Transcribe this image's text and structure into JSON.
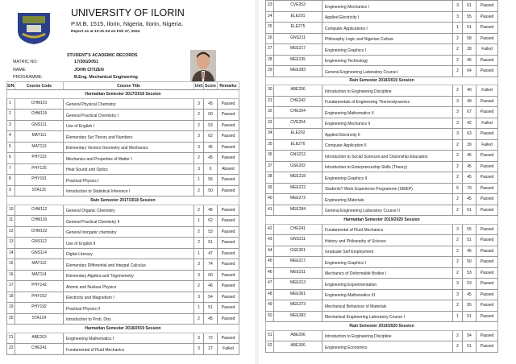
{
  "header": {
    "university": "UNIVERSITY OF ILORIN",
    "address": "P.M.B. 1515, Ilorin, Nigeria, Ilorin, Nigeria.",
    "report_time": "Report as at 10:31:34 on Feb 27, 2024",
    "records_title": "STUDENT'S ACADEMIC RECORDS"
  },
  "student": {
    "matric_label": "MATRIC NO:",
    "matric": "17/30GD051",
    "name_label": "NAME:",
    "name": "JOHN CITIZEN",
    "programme_label": "PROGRAMME:",
    "programme": "B.Eng. Mechanical Engineering"
  },
  "columns": {
    "sn": "S/N",
    "code": "Course Code",
    "title": "Course Title",
    "unit": "Unit",
    "score": "Score",
    "remarks": "Remarks"
  },
  "page1": [
    {
      "section": "Harmattan Semester 2017/2018 Session"
    },
    [
      "1",
      "CHM101",
      "General Physical Chemistry",
      "3",
      "45",
      "Passed"
    ],
    [
      "2",
      "CHM115",
      "General Practical Chemistry I",
      "2",
      "60",
      "Passed"
    ],
    [
      "3",
      "GNS111",
      "Use of English I",
      "2",
      "53",
      "Passed"
    ],
    [
      "4",
      "MAT111",
      "Elementary Set Theory and Numbers",
      "3",
      "62",
      "Passed"
    ],
    [
      "5",
      "MAT113",
      "Elementary Vectors Geometry and Mechanics",
      "3",
      "45",
      "Passed"
    ],
    [
      "6",
      "PHY115",
      "Mechanics and Properties of Matter I",
      "2",
      "45",
      "Passed"
    ],
    [
      "7",
      "PHY125",
      "Heat Sound and Optics",
      "3",
      "0",
      "Absent"
    ],
    [
      "8",
      "PHY191",
      "Practical Physics I",
      "1",
      "56",
      "Passed"
    ],
    [
      "9",
      "STA131",
      "Introduction to Statistical Inference I",
      "2",
      "50",
      "Passed"
    ],
    {
      "section": "Rain Semester 2017/2018 Session"
    },
    [
      "10",
      "CHM112",
      "General Organic Chemistry",
      "2",
      "45",
      "Passed"
    ],
    [
      "11",
      "CHM116",
      "General Practical Chemistry II",
      "1",
      "62",
      "Passed"
    ],
    [
      "12",
      "CHM132",
      "General Inorganic chemistry",
      "2",
      "53",
      "Passed"
    ],
    [
      "13",
      "GNS112",
      "Use of English II",
      "2",
      "51",
      "Passed"
    ],
    [
      "14",
      "GNS114",
      "Digital Literacy",
      "1",
      "47",
      "Passed"
    ],
    [
      "15",
      "MAT112",
      "Elementary Differential and Integral Calculus",
      "3",
      "74",
      "Passed"
    ],
    [
      "16",
      "MAT114",
      "Elementary Algebra and Trigonometry",
      "3",
      "60",
      "Passed"
    ],
    [
      "17",
      "PHY142",
      "Atomic and Nuclear Physics",
      "2",
      "46",
      "Passed"
    ],
    [
      "18",
      "PHY152",
      "Electricity and Magnetism I",
      "3",
      "54",
      "Passed"
    ],
    [
      "19",
      "PHY192",
      "Practical Physics II",
      "1",
      "51",
      "Passed"
    ],
    [
      "20",
      "STA124",
      "Introduction to Prob. Dist.",
      "2",
      "45",
      "Passed"
    ],
    {
      "section": "Harmattan Semester 2018/2019 Session"
    },
    [
      "21",
      "ABE263",
      "Engineering Mathematics I",
      "3",
      "72",
      "Passed"
    ],
    [
      "22",
      "CHE241",
      "Fundamental of Fluid Mechanics",
      "3",
      "27",
      "Failed"
    ]
  ],
  "page2": [
    [
      "23",
      "CVE253",
      "Engineering Mechanics I",
      "3",
      "51",
      "Passed"
    ],
    [
      "24",
      "ELE201",
      "Applied Electricity I",
      "3",
      "55",
      "Passed"
    ],
    [
      "25",
      "ELE275",
      "Computer Applications I",
      "1",
      "51",
      "Passed"
    ],
    [
      "26",
      "GNS211",
      "Philosophy Logic and Nigerian Culture",
      "2",
      "58",
      "Passed"
    ],
    [
      "27",
      "MEE217",
      "Engineering Graphics I",
      "2",
      "28",
      "Failed"
    ],
    [
      "28",
      "MEE235",
      "Engineering Technology",
      "2",
      "45",
      "Passed"
    ],
    [
      "29",
      "MEE283",
      "General Engineering Laboratory Course I",
      "2",
      "64",
      "Passed"
    ],
    {
      "section": "Rain Semester 2018/2019 Session"
    },
    [
      "30",
      "ABE206",
      "Introduction to Engineering Discipline",
      "2",
      "40",
      "Failed"
    ],
    [
      "31",
      "CHE242",
      "Fundamentals of Engineering Thermodynamics",
      "3",
      "49",
      "Passed"
    ],
    [
      "32",
      "CHE264",
      "Engineering Mathematics II",
      "3",
      "67",
      "Passed"
    ],
    [
      "33",
      "CVE254",
      "Engineering Mechanics II",
      "3",
      "42",
      "Failed"
    ],
    [
      "34",
      "ELE202",
      "Applied Electricity II",
      "3",
      "63",
      "Passed"
    ],
    [
      "35",
      "ELE276",
      "Computer Application II",
      "2",
      "39",
      "Failed"
    ],
    [
      "36",
      "GNS212",
      "Introduction to Social Sciences and Citizenship Education",
      "2",
      "45",
      "Passed"
    ],
    [
      "37",
      "GSE202",
      "Introduction to Enterprenurship Skills (Theory)",
      "2",
      "45",
      "Passed"
    ],
    [
      "38",
      "MEE218",
      "Engineering Graphics II",
      "2",
      "45",
      "Passed"
    ],
    [
      "39",
      "MEE222",
      "Students? Work Experience Programme (SWEP)",
      "6",
      "70",
      "Passed"
    ],
    [
      "40",
      "MEE272",
      "Engineering Materials",
      "2",
      "45",
      "Passed"
    ],
    [
      "41",
      "MEE284",
      "General Engineering Laboratory Course II",
      "2",
      "61",
      "Passed"
    ],
    {
      "section": "Harmattan Semester 2019/2020 Session"
    },
    [
      "42",
      "CHE241",
      "Fundamental of Fluid Mechanics",
      "3",
      "55",
      "Passed"
    ],
    [
      "43",
      "GNS311",
      "History and Philosophy of Science",
      "2",
      "51",
      "Passed"
    ],
    [
      "44",
      "GSE301",
      "Graduate Self Employment",
      "2",
      "45",
      "Passed"
    ],
    [
      "45",
      "MEE217",
      "Engineering Graphics I",
      "2",
      "50",
      "Passed"
    ],
    [
      "46",
      "MEE311",
      "Mechanics of Deformable Bodies I",
      "2",
      "53",
      "Passed"
    ],
    [
      "47",
      "MEE313",
      "Engineering Experimentation",
      "3",
      "53",
      "Passed"
    ],
    [
      "48",
      "MEE361",
      "Engineering Mathematics III",
      "3",
      "45",
      "Passed"
    ],
    [
      "49",
      "MEE373",
      "Mechanical Behaviour of Materials",
      "2",
      "55",
      "Passed"
    ],
    [
      "50",
      "MEE383",
      "Mechanical Engineering Laboratory Course I",
      "1",
      "51",
      "Passed"
    ],
    {
      "section": "Rain Semester 2019/2020 Session"
    },
    [
      "51",
      "ABE206",
      "Introduction to Engineering Discipline",
      "2",
      "54",
      "Passed"
    ],
    [
      "52",
      "ABE306",
      "Engineering Economics",
      "2",
      "51",
      "Passed"
    ]
  ]
}
